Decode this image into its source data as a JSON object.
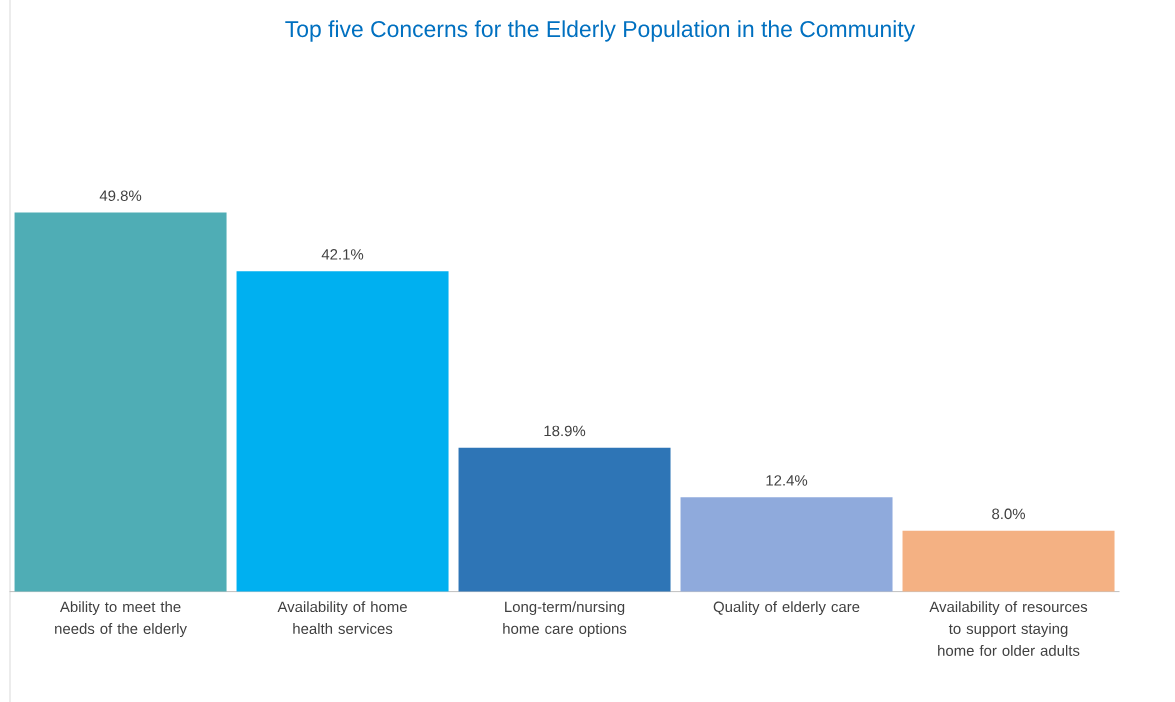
{
  "chart_data": {
    "type": "bar",
    "title": "Top five  Concerns for the Elderly Population in the Community",
    "categories": [
      "Ability to meet the needs of the elderly",
      "Availability of home health services",
      "Long-term/nursing home care options",
      "Quality of elderly care",
      "Availability of resources to support staying home for older adults"
    ],
    "values": [
      49.8,
      42.1,
      18.9,
      12.4,
      8.0
    ],
    "value_labels": [
      "49.8%",
      "42.1%",
      "18.9%",
      "12.4%",
      "8.0%"
    ],
    "colors": [
      "#4fadb5",
      "#00b0f0",
      "#2e75b6",
      "#8faadc",
      "#f4b183"
    ]
  }
}
